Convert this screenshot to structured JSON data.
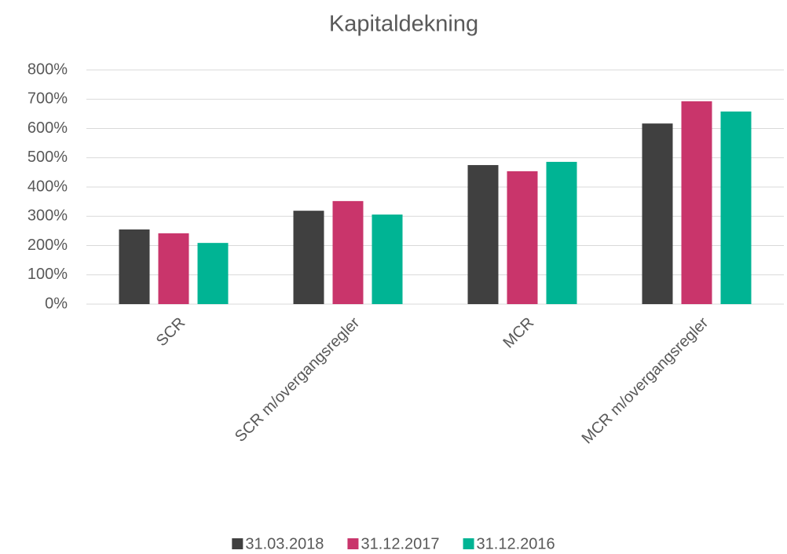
{
  "chart_data": {
    "type": "bar",
    "title": "Kapitaldekning",
    "categories": [
      "SCR",
      "SCR m/overgangsregler",
      "MCR",
      "MCR m/overgangsregler"
    ],
    "series": [
      {
        "name": "31.03.2018",
        "color": "#404040",
        "values": [
          255,
          319,
          475,
          617
        ]
      },
      {
        "name": "31.12.2017",
        "color": "#c9356b",
        "values": [
          242,
          352,
          454,
          693
        ]
      },
      {
        "name": "31.12.2016",
        "color": "#00b494",
        "values": [
          209,
          306,
          486,
          658
        ]
      }
    ],
    "ylim": [
      0,
      800
    ],
    "yticks": [
      {
        "value": 0,
        "label": "0%"
      },
      {
        "value": 100,
        "label": "100%"
      },
      {
        "value": 200,
        "label": "200%"
      },
      {
        "value": 300,
        "label": "300%"
      },
      {
        "value": 400,
        "label": "400%"
      },
      {
        "value": 500,
        "label": "500%"
      },
      {
        "value": 600,
        "label": "600%"
      },
      {
        "value": 700,
        "label": "700%"
      },
      {
        "value": 800,
        "label": "800%"
      }
    ],
    "grid": true,
    "legend": "bottom"
  }
}
